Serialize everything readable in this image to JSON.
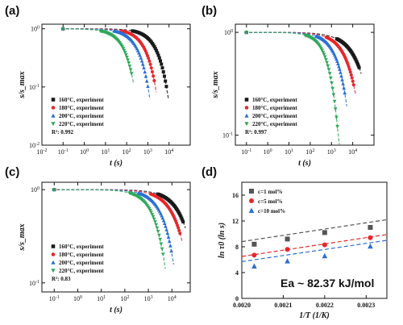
{
  "colors": {
    "160": "#1a1a1a",
    "180": "#e8262a",
    "200": "#2a6fd6",
    "220": "#2fa85a"
  },
  "chart_data": [
    {
      "type": "scatter",
      "panel": "(a)",
      "xlabel": "t (s)",
      "ylabel": "s/s_max",
      "xscale": "log",
      "yscale": "log",
      "xlim": [
        0.01,
        100000
      ],
      "ylim": [
        0.01,
        1.2
      ],
      "xticks": [
        "10^-2",
        "10^-1",
        "10^0",
        "10^1",
        "10^2",
        "10^3",
        "10^4"
      ],
      "yticks": [
        "10^0",
        "10^-1",
        "10^-2"
      ],
      "legend": [
        "160°C, experiment",
        "180°C, experiment",
        "200°C, experiment",
        "220°C, experiment"
      ],
      "annotation": "R²: 0.992",
      "series": [
        {
          "name": "160°C, experiment",
          "color": "#1a1a1a",
          "marker": "square",
          "tau": 3000,
          "beta": 0.9,
          "tend": 7500
        },
        {
          "name": "180°C, experiment",
          "color": "#e8262a",
          "marker": "circle",
          "tau": 900,
          "beta": 0.9,
          "tend": 2000
        },
        {
          "name": "200°C, experiment",
          "color": "#2a6fd6",
          "marker": "triangle",
          "tau": 400,
          "beta": 0.9,
          "tend": 1000
        },
        {
          "name": "220°C, experiment",
          "color": "#2fa85a",
          "marker": "tri-down",
          "tau": 90,
          "beta": 0.9,
          "tend": 170
        }
      ]
    },
    {
      "type": "scatter",
      "panel": "(b)",
      "xlabel": "t (s)",
      "ylabel": "s/s_max",
      "xscale": "log",
      "yscale": "log",
      "xlim": [
        0.03,
        100000
      ],
      "ylim": [
        0.08,
        1.2
      ],
      "xticks": [
        "10^-1",
        "10^0",
        "10^1",
        "10^2",
        "10^3",
        "10^4"
      ],
      "yticks": [
        "10^0",
        "10^-1"
      ],
      "legend": [
        "160°C, experiment",
        "180°C, experiment",
        "200°C, experiment",
        "220°C, experiment"
      ],
      "annotation": "R²: 0.997",
      "series": [
        {
          "name": "160°C, experiment",
          "color": "#1a1a1a",
          "marker": "square",
          "tau": 28000,
          "beta": 0.7,
          "tend": 20000
        },
        {
          "name": "180°C, experiment",
          "color": "#e8262a",
          "marker": "circle",
          "tau": 9000,
          "beta": 0.8,
          "tend": 11000
        },
        {
          "name": "200°C, experiment",
          "color": "#2a6fd6",
          "marker": "triangle",
          "tau": 3000,
          "beta": 0.9,
          "tend": 4200
        },
        {
          "name": "220°C, experiment",
          "color": "#2fa85a",
          "marker": "tri-down",
          "tau": 900,
          "beta": 1.0,
          "tend": 1900
        }
      ]
    },
    {
      "type": "scatter",
      "panel": "(c)",
      "xlabel": "t (s)",
      "ylabel": "s/s_max",
      "xscale": "log",
      "yscale": "log",
      "xlim": [
        0.03,
        60000
      ],
      "ylim": [
        0.08,
        1.2
      ],
      "xticks": [
        "10^-1",
        "10^0",
        "10^1",
        "10^2",
        "10^3",
        "10^4"
      ],
      "yticks": [
        "10^0",
        "10^-1"
      ],
      "legend": [
        "160°C, experiment",
        "180°C, experiment",
        "200°C, experiment",
        "220°C, experiment"
      ],
      "annotation": "R²: 0.83",
      "series": [
        {
          "name": "160°C, experiment",
          "color": "#1a1a1a",
          "marker": "square",
          "tau": 40000,
          "beta": 0.8,
          "tend": 30000
        },
        {
          "name": "180°C, experiment",
          "color": "#e8262a",
          "marker": "circle",
          "tau": 20000,
          "beta": 0.8,
          "tend": 22000
        },
        {
          "name": "200°C, experiment",
          "color": "#2a6fd6",
          "marker": "triangle",
          "tau": 6000,
          "beta": 0.9,
          "tend": 9500
        },
        {
          "name": "220°C, experiment",
          "color": "#2fa85a",
          "marker": "tri-down",
          "tau": 2500,
          "beta": 0.9,
          "tend": 4200
        }
      ]
    },
    {
      "type": "scatter",
      "panel": "(d)",
      "xlabel": "1/T (1/K)",
      "ylabel": "ln τ0 (ln s)",
      "xlim": [
        0.002,
        0.00235
      ],
      "ylim": [
        0,
        18
      ],
      "xticks": [
        "0.0020",
        "0.0021",
        "0.0022",
        "0.0023"
      ],
      "yticks": [
        "0",
        "4",
        "8",
        "12",
        "16"
      ],
      "annotation": "Ea ~ 82.37 kJ/mol",
      "series": [
        {
          "name": "c=1 mol%",
          "color": "#555555",
          "marker": "square",
          "x": [
            0.00203,
            0.00211,
            0.0022,
            0.00231
          ],
          "y": [
            8.4,
            9.2,
            10.2,
            11.0
          ],
          "fit": [
            [
              0.002,
              8.8
            ],
            [
              0.00235,
              12.2
            ]
          ]
        },
        {
          "name": "c=5 mol%",
          "color": "#e8262a",
          "marker": "circle",
          "x": [
            0.00203,
            0.00211,
            0.0022,
            0.00231
          ],
          "y": [
            6.7,
            7.6,
            8.3,
            9.4
          ],
          "fit": [
            [
              0.002,
              6.5
            ],
            [
              0.00235,
              9.9
            ]
          ]
        },
        {
          "name": "c=10 mol%",
          "color": "#2a6fd6",
          "marker": "triangle",
          "x": [
            0.00203,
            0.00211,
            0.0022,
            0.00231
          ],
          "y": [
            5.0,
            5.8,
            6.6,
            8.1
          ],
          "fit": [
            [
              0.002,
              5.7
            ],
            [
              0.00235,
              9.0
            ]
          ]
        }
      ]
    }
  ]
}
